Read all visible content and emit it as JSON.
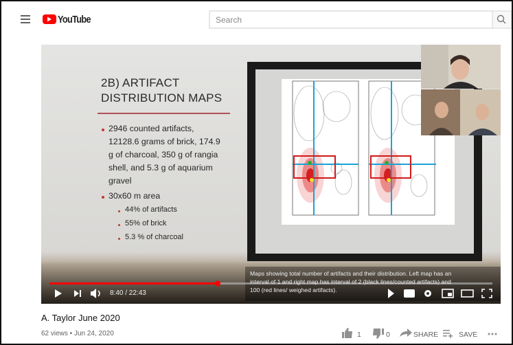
{
  "header": {
    "logo": "YouTube",
    "search_placeholder": "Search"
  },
  "slide": {
    "title_lines": [
      "2B) ARTIFACT",
      "DISTRIBUTION MAPS"
    ],
    "bullet1_lines": [
      "2946 counted artifacts,",
      "12128.6 grams of brick, 174.9",
      "g of charcoal, 350 g of rangia",
      "shell, and 5.3 g of aquarium",
      "gravel"
    ],
    "bullet2": "30x60 m area",
    "sub_bullets": [
      "44% of artifacts",
      "55% of brick",
      "5.3 % of charcoal"
    ],
    "caption_lines": [
      "Maps showing total number of artifacts and their distribution. Left map has an",
      "interval of 1 and right map has interval of 2 (black lines/counted artifacts) and",
      "100 (red lines/ weighed artifacts)."
    ]
  },
  "player": {
    "time": "8:40 / 22:43"
  },
  "video": {
    "title": "A. Taylor June 2020",
    "meta": "62 views • Jun 24, 2020",
    "likes": 1,
    "dislikes": 0,
    "share": "SHARE",
    "save": "SAVE"
  }
}
